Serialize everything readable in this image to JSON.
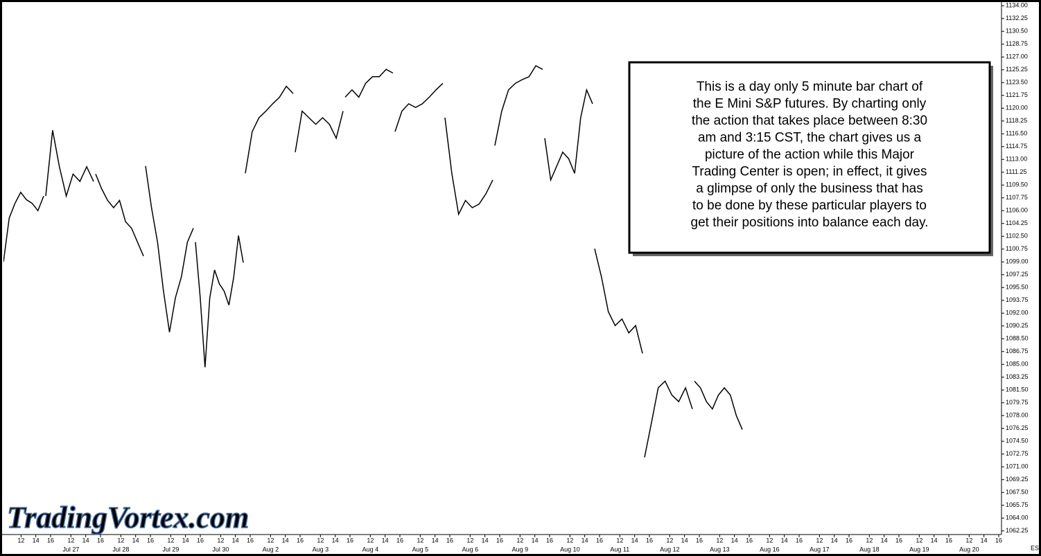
{
  "chart_data": {
    "type": "line",
    "color": "#000000",
    "symbol": "ES",
    "watermark": "TradingVortex.com",
    "annotation": [
      "This is a day only 5 minute bar chart of",
      "the E Mini S&P futures. By charting only",
      "the action that takes place between 8:30",
      "am and 3:15 CST, the chart gives us a",
      "picture of the action while this Major",
      "Trading Center is open; in effect, it gives",
      "a glimpse of only the business that has",
      "to be done by these particular players to",
      "get their positions into balance each day."
    ],
    "hour_ticks": [
      12,
      14,
      16
    ],
    "categories": [
      null,
      "Jul 27",
      "Jul 28",
      "Jul 29",
      "Jul 30",
      "Aug 2",
      "Aug 3",
      "Aug 4",
      "Aug 5",
      "Aug 6",
      "Aug 9",
      "Aug 10",
      "Aug 11",
      "Aug 12",
      "Aug 13",
      "Aug 16",
      "Aug 17",
      "Aug 18",
      "Aug 19",
      "Aug 20"
    ],
    "values": [
      [
        1099,
        1105,
        1107,
        1108.5,
        1107.5,
        1107,
        1106,
        1108
      ],
      [
        1108,
        1117,
        1112,
        1108,
        1111,
        1110,
        1112,
        1110
      ],
      [
        1111,
        1109,
        1107.4,
        1106.4,
        1107.4,
        1104.5,
        1103.6,
        1101.7,
        1099.8
      ],
      [
        1112.1,
        1106.4,
        1101.7,
        1095,
        1089.4,
        1094.1,
        1097,
        1101.7,
        1103.6
      ],
      [
        1101.7,
        1094.1,
        1084.6,
        1094.1,
        1097.9,
        1096,
        1095,
        1093.1,
        1096.9,
        1102.6,
        1098.9
      ],
      [
        1111.1,
        1116.8,
        1118.7,
        1119.6,
        1120.6,
        1121.5,
        1123,
        1122
      ],
      [
        1114,
        1119.6,
        1118.7,
        1117.8,
        1118.7,
        1117.8,
        1115.9,
        1119.6
      ],
      [
        1121.5,
        1122.5,
        1121.5,
        1123.4,
        1124.3,
        1124.3,
        1125.3,
        1124.8
      ],
      [
        1116.8,
        1119.6,
        1120.6,
        1120.1,
        1120.6,
        1121.5,
        1122.5,
        1123.4
      ],
      [
        1118.7,
        1111.1,
        1105.5,
        1107.4,
        1106.4,
        1106.9,
        1108.3,
        1110.2
      ],
      [
        1114.9,
        1119.6,
        1122.5,
        1123.4,
        1123.9,
        1124.3,
        1125.8,
        1125.3
      ],
      [
        1115.9,
        1110.2,
        1112.1,
        1114,
        1113.1,
        1111.1,
        1118.7,
        1122.5,
        1120.6
      ],
      [
        1100.8,
        1096.9,
        1092.2,
        1090.3,
        1091.2,
        1089.3,
        1090.3,
        1086.5
      ],
      [
        1072.3,
        1077,
        1081.8,
        1082.7,
        1080.8,
        1079.9,
        1081.8,
        1078.9
      ],
      [
        1082.7,
        1081.8,
        1079.9,
        1078.9,
        1080.8,
        1081.8,
        1080.8,
        1078,
        1076.1
      ],
      [],
      [],
      [],
      [],
      []
    ],
    "ylim": [
      1061.75,
      1134.5
    ],
    "yticks": [
      {
        "value": 1062.25,
        "label": "1062.25"
      },
      {
        "value": 1064,
        "label": "1064.00"
      },
      {
        "value": 1065.75,
        "label": "1065.75"
      },
      {
        "value": 1067.5,
        "label": "1067.50"
      },
      {
        "value": 1069.25,
        "label": "1069.25"
      },
      {
        "value": 1071,
        "label": "1071.00"
      },
      {
        "value": 1072.75,
        "label": "1072.75"
      },
      {
        "value": 1074.5,
        "label": "1074.50"
      },
      {
        "value": 1076.25,
        "label": "1076.25"
      },
      {
        "value": 1078,
        "label": "1078.00"
      },
      {
        "value": 1079.75,
        "label": "1079.75"
      },
      {
        "value": 1081.5,
        "label": "1081.50"
      },
      {
        "value": 1083.25,
        "label": "1083.25"
      },
      {
        "value": 1085,
        "label": "1085.00"
      },
      {
        "value": 1086.75,
        "label": "1086.75"
      },
      {
        "value": 1088.5,
        "label": "1088.50"
      },
      {
        "value": 1090.25,
        "label": "1090.25"
      },
      {
        "value": 1092,
        "label": "1092.00"
      },
      {
        "value": 1093.75,
        "label": "1093.75"
      },
      {
        "value": 1095.5,
        "label": "1095.50"
      },
      {
        "value": 1097.25,
        "label": "1097.25"
      },
      {
        "value": 1099,
        "label": "1099.00"
      },
      {
        "value": 1100.75,
        "label": "1100.75"
      },
      {
        "value": 1102.5,
        "label": "1102.50"
      },
      {
        "value": 1104.25,
        "label": "1104.25"
      },
      {
        "value": 1106,
        "label": "1106.00"
      },
      {
        "value": 1107.75,
        "label": "1107.75"
      },
      {
        "value": 1109.5,
        "label": "1109.50"
      },
      {
        "value": 1111.25,
        "label": "1111.25"
      },
      {
        "value": 1113,
        "label": "1113.00"
      },
      {
        "value": 1114.75,
        "label": "1114.75"
      },
      {
        "value": 1116.5,
        "label": "1116.50"
      },
      {
        "value": 1118.25,
        "label": "1118.25"
      },
      {
        "value": 1120,
        "label": "1120.00"
      },
      {
        "value": 1121.75,
        "label": "1121.75"
      },
      {
        "value": 1123.5,
        "label": "1123.50"
      },
      {
        "value": 1125.25,
        "label": "1125.25"
      },
      {
        "value": 1127,
        "label": "1127.00"
      },
      {
        "value": 1128.75,
        "label": "1128.75"
      },
      {
        "value": 1130.5,
        "label": "1130.50"
      },
      {
        "value": 1132.25,
        "label": "1132.25"
      },
      {
        "value": 1134,
        "label": "1134.00"
      }
    ]
  }
}
